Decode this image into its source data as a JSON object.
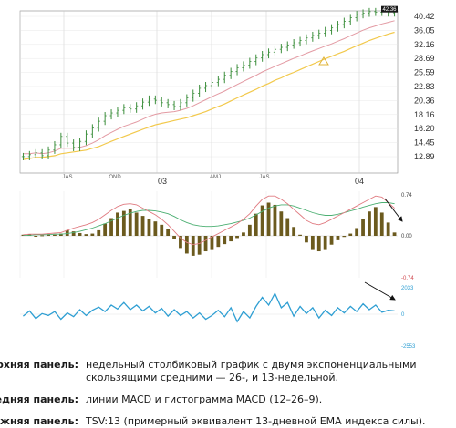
{
  "chart_data": [
    {
      "type": "line",
      "title": "",
      "y_ticks": [
        "40.42",
        "36.05",
        "32.16",
        "28.69",
        "25.59",
        "22.83",
        "20.36",
        "18.16",
        "16.20",
        "14.45",
        "12.89"
      ],
      "x_ticks": [
        "JAS",
        "OND",
        "03",
        "AMJ",
        "JAS",
        "04"
      ],
      "last_price_label": "42.36",
      "series": [
        {
          "name": "",
          "values": [
            12.9,
            13.1,
            13.3,
            13.0,
            13.6,
            14.2,
            15.2,
            14.4,
            13.9,
            14.6,
            15.5,
            16.3,
            17.2,
            18.0,
            18.4,
            18.8,
            19.2,
            19.0,
            19.5,
            20.1,
            20.6,
            20.4,
            20.0,
            19.7,
            19.4,
            20.0,
            20.8,
            21.6,
            22.5,
            23.0,
            23.6,
            24.2,
            25.0,
            25.8,
            26.6,
            27.2,
            28.0,
            28.8,
            29.6,
            30.2,
            30.9,
            31.4,
            32.0,
            32.6,
            33.2,
            33.9,
            34.6,
            35.2,
            36.0,
            36.8,
            37.8,
            38.8,
            40.0,
            41.0,
            41.5,
            42.0,
            41.8,
            42.4,
            41.6,
            42.36
          ]
        },
        {
          "name": "",
          "values": [
            13.2,
            13.2,
            13.3,
            13.2,
            13.3,
            13.5,
            13.8,
            13.8,
            13.8,
            13.9,
            14.1,
            14.4,
            14.8,
            15.3,
            15.7,
            16.1,
            16.5,
            16.8,
            17.1,
            17.5,
            17.9,
            18.2,
            18.4,
            18.5,
            18.6,
            18.8,
            19.1,
            19.5,
            20.0,
            20.5,
            21.0,
            21.5,
            22.0,
            22.6,
            23.2,
            23.8,
            24.4,
            25.0,
            25.7,
            26.3,
            26.9,
            27.5,
            28.1,
            28.7,
            29.3,
            29.9,
            30.5,
            31.1,
            31.7,
            32.3,
            33.0,
            33.7,
            34.5,
            35.3,
            36.1,
            36.8,
            37.4,
            38.0,
            38.5,
            39.0
          ]
        },
        {
          "name": "",
          "values": [
            12.6,
            12.7,
            12.8,
            12.8,
            12.9,
            13.0,
            13.2,
            13.3,
            13.4,
            13.5,
            13.6,
            13.8,
            14.0,
            14.3,
            14.6,
            14.9,
            15.2,
            15.5,
            15.8,
            16.1,
            16.4,
            16.7,
            16.9,
            17.1,
            17.3,
            17.5,
            17.7,
            18.0,
            18.3,
            18.6,
            19.0,
            19.4,
            19.8,
            20.3,
            20.8,
            21.3,
            21.8,
            22.3,
            22.9,
            23.4,
            24.0,
            24.5,
            25.1,
            25.6,
            26.2,
            26.8,
            27.4,
            28.0,
            28.6,
            29.2,
            29.8,
            30.4,
            31.1,
            31.8,
            32.5,
            33.2,
            33.8,
            34.4,
            35.0,
            35.5
          ]
        }
      ]
    },
    {
      "type": "bar",
      "title": "",
      "y_ticks": [
        "0.74",
        "0.00",
        "-0.74"
      ],
      "ylim": [
        -0.74,
        0.74
      ],
      "histogram": [
        0.02,
        0.03,
        -0.01,
        0.01,
        0.03,
        0.02,
        0.04,
        0.1,
        0.08,
        0.05,
        0.03,
        0.04,
        0.1,
        0.22,
        0.32,
        0.42,
        0.45,
        0.48,
        0.42,
        0.36,
        0.3,
        0.26,
        0.2,
        0.12,
        -0.05,
        -0.22,
        -0.32,
        -0.36,
        -0.34,
        -0.28,
        -0.24,
        -0.2,
        -0.15,
        -0.1,
        -0.04,
        0.06,
        0.2,
        0.4,
        0.55,
        0.6,
        0.56,
        0.44,
        0.32,
        0.16,
        0.02,
        -0.12,
        -0.24,
        -0.28,
        -0.24,
        -0.16,
        -0.08,
        -0.02,
        0.04,
        0.14,
        0.3,
        0.44,
        0.52,
        0.42,
        0.24,
        0.06
      ],
      "series": [
        {
          "name": "",
          "values": [
            0.02,
            0.03,
            0.03,
            0.03,
            0.04,
            0.05,
            0.06,
            0.1,
            0.14,
            0.17,
            0.2,
            0.24,
            0.3,
            0.38,
            0.46,
            0.53,
            0.57,
            0.58,
            0.56,
            0.5,
            0.44,
            0.38,
            0.3,
            0.2,
            0.08,
            -0.04,
            -0.12,
            -0.16,
            -0.14,
            -0.08,
            -0.02,
            0.04,
            0.1,
            0.16,
            0.22,
            0.3,
            0.4,
            0.54,
            0.66,
            0.72,
            0.72,
            0.66,
            0.58,
            0.48,
            0.38,
            0.28,
            0.22,
            0.2,
            0.24,
            0.3,
            0.36,
            0.42,
            0.48,
            0.54,
            0.6,
            0.66,
            0.72,
            0.7,
            0.6,
            0.5
          ]
        },
        {
          "name": "",
          "values": [
            0.01,
            0.01,
            0.02,
            0.02,
            0.02,
            0.03,
            0.03,
            0.04,
            0.06,
            0.08,
            0.11,
            0.14,
            0.18,
            0.22,
            0.27,
            0.32,
            0.37,
            0.41,
            0.44,
            0.46,
            0.46,
            0.45,
            0.43,
            0.4,
            0.35,
            0.29,
            0.24,
            0.2,
            0.18,
            0.17,
            0.17,
            0.18,
            0.2,
            0.22,
            0.25,
            0.28,
            0.32,
            0.38,
            0.44,
            0.5,
            0.54,
            0.56,
            0.56,
            0.54,
            0.5,
            0.46,
            0.42,
            0.39,
            0.37,
            0.37,
            0.39,
            0.42,
            0.45,
            0.48,
            0.52,
            0.55,
            0.58,
            0.6,
            0.6,
            0.58
          ]
        }
      ]
    },
    {
      "type": "line",
      "title": "",
      "y_ticks": [
        "2033",
        "0",
        "-2553"
      ],
      "ylim": [
        -2553,
        2033
      ],
      "series": [
        {
          "name": "",
          "values": [
            -150,
            250,
            -350,
            50,
            -100,
            200,
            -400,
            100,
            -200,
            350,
            -100,
            300,
            550,
            200,
            700,
            400,
            900,
            350,
            700,
            250,
            600,
            100,
            450,
            -150,
            350,
            -100,
            200,
            -300,
            100,
            -400,
            -100,
            300,
            -200,
            500,
            -600,
            200,
            -300,
            600,
            1300,
            700,
            1600,
            500,
            900,
            -150,
            600,
            50,
            500,
            -300,
            300,
            -100,
            500,
            100,
            600,
            200,
            800,
            350,
            700,
            150,
            300,
            250
          ]
        }
      ]
    }
  ],
  "caption": [
    {
      "label": "Верхняя панель:",
      "text": "недельный столбиковый график с двумя экспоненциальными скользящими средними — 26-, и 13-недельной."
    },
    {
      "label": "Средняя панель:",
      "text": "линии MACD и гистограмма MACD (12–26–9)."
    },
    {
      "label": "Нижняя панель:",
      "text": "TSV:13 (примерный эквивалент 13-дневной EMA индекса силы)."
    }
  ]
}
